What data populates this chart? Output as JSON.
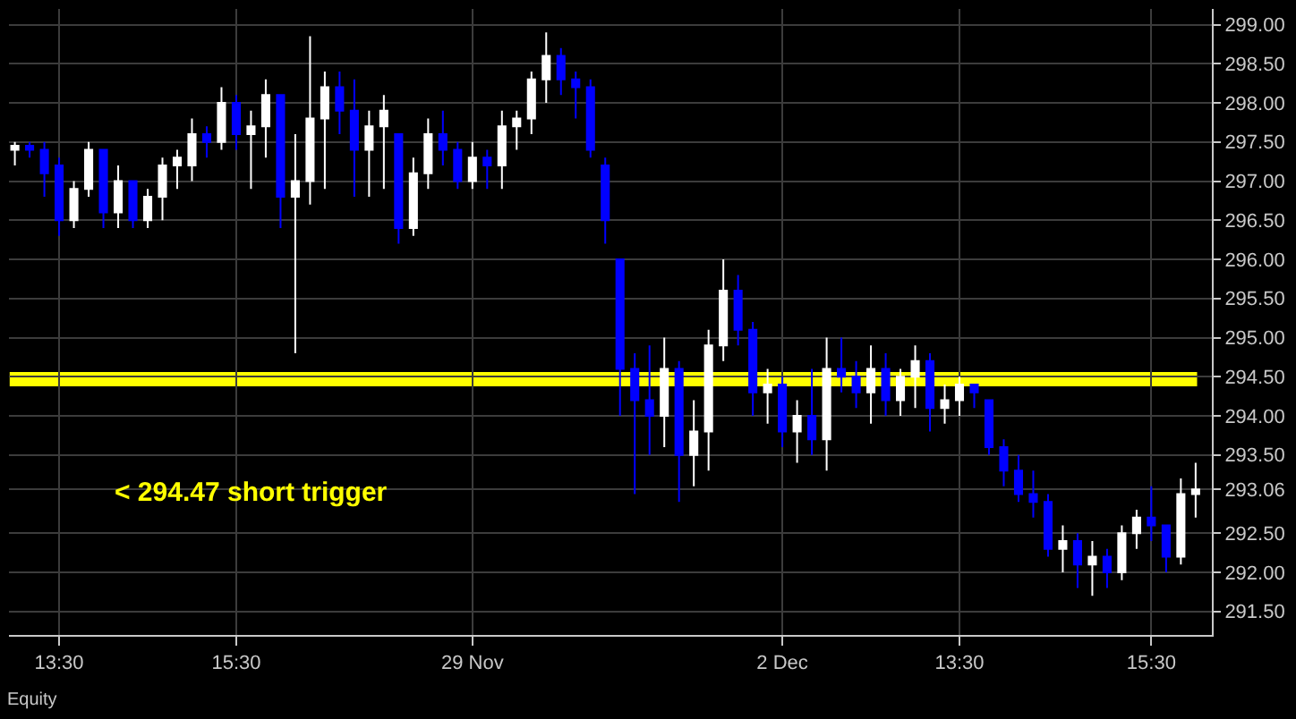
{
  "chart_data": {
    "type": "candlestick",
    "categories": [
      null,
      null,
      null,
      "13:30",
      null,
      null,
      null,
      null,
      null,
      null,
      null,
      null,
      null,
      null,
      null,
      "15:30",
      null,
      null,
      null,
      null,
      null,
      null,
      null,
      null,
      null,
      null,
      null,
      null,
      null,
      null,
      null,
      "29 Nov",
      null,
      null,
      null,
      null,
      null,
      null,
      null,
      null,
      null,
      null,
      null,
      null,
      null,
      null,
      null,
      null,
      null,
      null,
      null,
      null,
      "2 Dec",
      null,
      null,
      null,
      null,
      null,
      null,
      null,
      null,
      null,
      null,
      null,
      "13:30",
      null,
      null,
      null,
      null,
      null,
      null,
      null,
      null,
      null,
      null,
      null,
      null,
      "15:30",
      null,
      null,
      null
    ],
    "ohlc": [
      [
        297.4,
        297.5,
        297.2,
        297.45
      ],
      [
        297.45,
        297.5,
        297.3,
        297.4
      ],
      [
        297.4,
        297.5,
        296.8,
        297.1
      ],
      [
        297.2,
        297.3,
        296.3,
        296.5
      ],
      [
        296.5,
        297.0,
        296.4,
        296.9
      ],
      [
        296.9,
        297.5,
        296.8,
        297.4
      ],
      [
        297.4,
        297.4,
        296.4,
        296.6
      ],
      [
        296.6,
        297.2,
        296.4,
        297.0
      ],
      [
        297.0,
        297.0,
        296.4,
        296.5
      ],
      [
        296.5,
        296.9,
        296.4,
        296.8
      ],
      [
        296.8,
        297.3,
        296.5,
        297.2
      ],
      [
        297.2,
        297.4,
        296.9,
        297.3
      ],
      [
        297.2,
        297.8,
        297.0,
        297.6
      ],
      [
        297.6,
        297.7,
        297.3,
        297.5
      ],
      [
        297.5,
        298.2,
        297.4,
        298.0
      ],
      [
        298.0,
        298.1,
        297.4,
        297.6
      ],
      [
        297.6,
        297.9,
        296.9,
        297.7
      ],
      [
        297.7,
        298.3,
        297.3,
        298.1
      ],
      [
        298.1,
        298.1,
        296.4,
        296.8
      ],
      [
        296.8,
        297.6,
        294.8,
        297.0
      ],
      [
        297.0,
        298.85,
        296.7,
        297.8
      ],
      [
        297.8,
        298.4,
        296.9,
        298.2
      ],
      [
        298.2,
        298.4,
        297.6,
        297.9
      ],
      [
        297.9,
        298.3,
        296.8,
        297.4
      ],
      [
        297.4,
        297.9,
        296.8,
        297.7
      ],
      [
        297.7,
        298.1,
        296.9,
        297.9
      ],
      [
        297.6,
        297.6,
        296.2,
        296.4
      ],
      [
        296.4,
        297.3,
        296.3,
        297.1
      ],
      [
        297.1,
        297.8,
        296.9,
        297.6
      ],
      [
        297.6,
        297.9,
        297.2,
        297.4
      ],
      [
        297.4,
        297.5,
        296.9,
        297.0
      ],
      [
        297.0,
        297.5,
        296.9,
        297.3
      ],
      [
        297.3,
        297.4,
        296.9,
        297.2
      ],
      [
        297.2,
        297.9,
        296.9,
        297.7
      ],
      [
        297.7,
        297.9,
        297.4,
        297.8
      ],
      [
        297.8,
        298.4,
        297.6,
        298.3
      ],
      [
        298.3,
        298.9,
        298.0,
        298.6
      ],
      [
        298.6,
        298.7,
        298.1,
        298.3
      ],
      [
        298.3,
        298.4,
        297.8,
        298.2
      ],
      [
        298.2,
        298.3,
        297.3,
        297.4
      ],
      [
        297.2,
        297.3,
        296.2,
        296.5
      ],
      [
        296.0,
        296.0,
        294.0,
        294.6
      ],
      [
        294.6,
        294.8,
        293.0,
        294.2
      ],
      [
        294.2,
        294.9,
        293.5,
        294.0
      ],
      [
        294.0,
        295.0,
        293.6,
        294.6
      ],
      [
        294.6,
        294.7,
        292.9,
        293.5
      ],
      [
        293.5,
        294.2,
        293.1,
        293.8
      ],
      [
        293.8,
        295.1,
        293.3,
        294.9
      ],
      [
        294.9,
        296.0,
        294.7,
        295.6
      ],
      [
        295.6,
        295.8,
        294.9,
        295.1
      ],
      [
        295.1,
        295.2,
        294.0,
        294.3
      ],
      [
        294.3,
        294.6,
        293.9,
        294.4
      ],
      [
        294.4,
        294.5,
        293.6,
        293.8
      ],
      [
        293.8,
        294.2,
        293.4,
        294.0
      ],
      [
        294.0,
        294.6,
        293.5,
        293.7
      ],
      [
        293.7,
        295.0,
        293.3,
        294.6
      ],
      [
        294.6,
        295.0,
        294.3,
        294.5
      ],
      [
        294.5,
        294.7,
        294.1,
        294.3
      ],
      [
        294.3,
        294.9,
        293.9,
        294.6
      ],
      [
        294.6,
        294.8,
        294.0,
        294.2
      ],
      [
        294.2,
        294.6,
        294.0,
        294.5
      ],
      [
        294.5,
        294.9,
        294.1,
        294.7
      ],
      [
        294.7,
        294.8,
        293.8,
        294.1
      ],
      [
        294.1,
        294.4,
        293.9,
        294.2
      ],
      [
        294.2,
        294.5,
        294.0,
        294.4
      ],
      [
        294.4,
        294.4,
        294.1,
        294.3
      ],
      [
        294.2,
        294.2,
        293.5,
        293.6
      ],
      [
        293.6,
        293.7,
        293.1,
        293.3
      ],
      [
        293.3,
        293.5,
        292.9,
        293.0
      ],
      [
        293.0,
        293.3,
        292.7,
        292.9
      ],
      [
        292.9,
        293.0,
        292.2,
        292.3
      ],
      [
        292.3,
        292.6,
        292.0,
        292.4
      ],
      [
        292.4,
        292.5,
        291.8,
        292.1
      ],
      [
        292.1,
        292.4,
        291.7,
        292.2
      ],
      [
        292.2,
        292.3,
        291.8,
        292.0
      ],
      [
        292.0,
        292.6,
        291.9,
        292.5
      ],
      [
        292.5,
        292.8,
        292.3,
        292.7
      ],
      [
        292.7,
        293.1,
        292.4,
        292.6
      ],
      [
        292.6,
        292.6,
        292.0,
        292.2
      ],
      [
        292.2,
        293.2,
        292.1,
        293.0
      ],
      [
        293.0,
        293.4,
        292.7,
        293.06
      ]
    ],
    "ylim": [
      291.2,
      299.2
    ],
    "yticks": [
      {
        "value": 291.5,
        "label": "291.50"
      },
      {
        "value": 292.0,
        "label": "292.00"
      },
      {
        "value": 292.5,
        "label": "292.50"
      },
      {
        "value": 293.06,
        "label": "293.06"
      },
      {
        "value": 293.5,
        "label": "293.50"
      },
      {
        "value": 294.0,
        "label": "294.00"
      },
      {
        "value": 294.5,
        "label": "294.50"
      },
      {
        "value": 295.0,
        "label": "295.00"
      },
      {
        "value": 295.5,
        "label": "295.50"
      },
      {
        "value": 296.0,
        "label": "296.00"
      },
      {
        "value": 296.5,
        "label": "296.50"
      },
      {
        "value": 297.0,
        "label": "297.00"
      },
      {
        "value": 297.5,
        "label": "297.50"
      },
      {
        "value": 298.0,
        "label": "298.00"
      },
      {
        "value": 298.5,
        "label": "298.50"
      },
      {
        "value": 299.0,
        "label": "299.00"
      }
    ],
    "ref_lines": [
      {
        "axis": "y",
        "value": 294.47,
        "label": "< 294.47 short trigger",
        "color": "#ffff00"
      }
    ],
    "annotations": [
      "Equity"
    ],
    "grid": true
  }
}
